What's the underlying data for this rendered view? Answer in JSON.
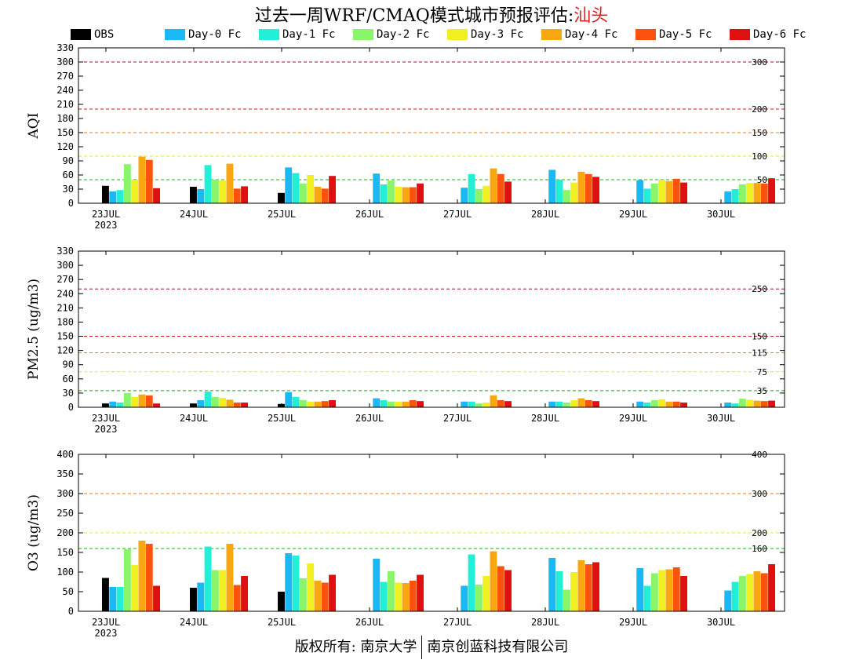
{
  "title": {
    "prefix": "过去一周WRF/CMAQ模式城市预报评估:",
    "city": "汕头"
  },
  "legend": [
    {
      "label": "OBS",
      "color": "#000000"
    },
    {
      "label": "Day-0 Fc",
      "color": "#1ab8f5"
    },
    {
      "label": "Day-1 Fc",
      "color": "#22f0d6"
    },
    {
      "label": "Day-2 Fc",
      "color": "#88f56a"
    },
    {
      "label": "Day-3 Fc",
      "color": "#f0f020"
    },
    {
      "label": "Day-4 Fc",
      "color": "#f7a80e"
    },
    {
      "label": "Day-5 Fc",
      "color": "#fb520d"
    },
    {
      "label": "Day-6 Fc",
      "color": "#e01010"
    }
  ],
  "chart_data": [
    {
      "type": "bar",
      "ylabel": "AQI",
      "ylim": [
        0,
        330
      ],
      "yticks": [
        0,
        30,
        60,
        90,
        120,
        150,
        180,
        210,
        240,
        270,
        300,
        330
      ],
      "categories": [
        "23JUL",
        "24JUL",
        "25JUL",
        "26JUL",
        "27JUL",
        "28JUL",
        "29JUL",
        "30JUL"
      ],
      "year_label": "2023",
      "reference_lines": [
        {
          "value": 300,
          "label": "300",
          "color": "#a0102a"
        },
        {
          "value": 200,
          "label": "200",
          "color": "#d01818"
        },
        {
          "value": 150,
          "label": "150",
          "color": "#f07a10"
        },
        {
          "value": 100,
          "label": "100",
          "color": "#e8e820"
        },
        {
          "value": 50,
          "label": "50",
          "color": "#10b010"
        }
      ],
      "series": [
        {
          "name": "OBS",
          "values": [
            37,
            35,
            22,
            null,
            null,
            null,
            null,
            null
          ]
        },
        {
          "name": "Day-0 Fc",
          "values": [
            25,
            30,
            76,
            63,
            33,
            71,
            49,
            25
          ]
        },
        {
          "name": "Day-1 Fc",
          "values": [
            28,
            81,
            64,
            40,
            62,
            50,
            31,
            30
          ]
        },
        {
          "name": "Day-2 Fc",
          "values": [
            83,
            50,
            42,
            48,
            30,
            28,
            42,
            40
          ]
        },
        {
          "name": "Day-3 Fc",
          "values": [
            50,
            48,
            60,
            35,
            37,
            44,
            50,
            43
          ]
        },
        {
          "name": "Day-4 Fc",
          "values": [
            99,
            84,
            35,
            34,
            74,
            67,
            47,
            43
          ]
        },
        {
          "name": "Day-5 Fc",
          "values": [
            92,
            31,
            31,
            34,
            62,
            62,
            52,
            42
          ]
        },
        {
          "name": "Day-6 Fc",
          "values": [
            32,
            36,
            58,
            42,
            46,
            56,
            44,
            53
          ]
        }
      ]
    },
    {
      "type": "bar",
      "ylabel": "PM2.5 (ug/m3)",
      "ylim": [
        0,
        330
      ],
      "yticks": [
        0,
        30,
        60,
        90,
        120,
        150,
        180,
        210,
        240,
        270,
        300,
        330
      ],
      "categories": [
        "23JUL",
        "24JUL",
        "25JUL",
        "26JUL",
        "27JUL",
        "28JUL",
        "29JUL",
        "30JUL"
      ],
      "year_label": "2023",
      "reference_lines": [
        {
          "value": 250,
          "label": "250",
          "color": "#a0102a"
        },
        {
          "value": 150,
          "label": "150",
          "color": "#d01818"
        },
        {
          "value": 115,
          "label": "115",
          "color": "#f07a10"
        },
        {
          "value": 75,
          "label": "75",
          "color": "#e8e820"
        },
        {
          "value": 35,
          "label": "35",
          "color": "#10b010"
        }
      ],
      "series": [
        {
          "name": "OBS",
          "values": [
            8,
            8,
            7,
            null,
            null,
            null,
            null,
            null
          ]
        },
        {
          "name": "Day-0 Fc",
          "values": [
            12,
            15,
            32,
            19,
            12,
            12,
            12,
            10
          ]
        },
        {
          "name": "Day-1 Fc",
          "values": [
            10,
            33,
            22,
            15,
            12,
            12,
            10,
            8
          ]
        },
        {
          "name": "Day-2 Fc",
          "values": [
            30,
            22,
            15,
            12,
            8,
            10,
            15,
            18
          ]
        },
        {
          "name": "Day-3 Fc",
          "values": [
            22,
            20,
            12,
            12,
            10,
            15,
            17,
            16
          ]
        },
        {
          "name": "Day-4 Fc",
          "values": [
            27,
            16,
            12,
            12,
            25,
            19,
            12,
            14
          ]
        },
        {
          "name": "Day-5 Fc",
          "values": [
            25,
            10,
            13,
            15,
            15,
            15,
            12,
            13
          ]
        },
        {
          "name": "Day-6 Fc",
          "values": [
            8,
            10,
            15,
            13,
            13,
            13,
            10,
            14
          ]
        }
      ]
    },
    {
      "type": "bar",
      "ylabel": "O3 (ug/m3)",
      "ylim": [
        0,
        400
      ],
      "yticks": [
        0,
        50,
        100,
        150,
        200,
        250,
        300,
        350,
        400
      ],
      "categories": [
        "23JUL",
        "24JUL",
        "25JUL",
        "26JUL",
        "27JUL",
        "28JUL",
        "29JUL",
        "30JUL"
      ],
      "year_label": "2023",
      "reference_lines": [
        {
          "value": 400,
          "label": "400",
          "color": "#d01818"
        },
        {
          "value": 300,
          "label": "300",
          "color": "#f07a10"
        },
        {
          "value": 200,
          "label": "200",
          "color": "#e8e820"
        },
        {
          "value": 160,
          "label": "160",
          "color": "#10b010"
        }
      ],
      "series": [
        {
          "name": "OBS",
          "values": [
            85,
            60,
            50,
            null,
            null,
            null,
            null,
            null
          ]
        },
        {
          "name": "Day-0 Fc",
          "values": [
            62,
            73,
            148,
            134,
            65,
            136,
            110,
            53
          ]
        },
        {
          "name": "Day-1 Fc",
          "values": [
            62,
            165,
            142,
            75,
            145,
            102,
            65,
            75
          ]
        },
        {
          "name": "Day-2 Fc",
          "values": [
            158,
            105,
            84,
            102,
            68,
            55,
            97,
            90
          ]
        },
        {
          "name": "Day-3 Fc",
          "values": [
            118,
            105,
            122,
            73,
            90,
            100,
            105,
            95
          ]
        },
        {
          "name": "Day-4 Fc",
          "values": [
            180,
            172,
            78,
            72,
            153,
            130,
            107,
            102
          ]
        },
        {
          "name": "Day-5 Fc",
          "values": [
            172,
            67,
            73,
            78,
            115,
            120,
            112,
            97
          ]
        },
        {
          "name": "Day-6 Fc",
          "values": [
            65,
            90,
            93,
            93,
            105,
            125,
            90,
            120
          ]
        }
      ]
    }
  ],
  "footer": {
    "left": "版权所有: 南京大学",
    "right": "南京创蓝科技有限公司"
  }
}
